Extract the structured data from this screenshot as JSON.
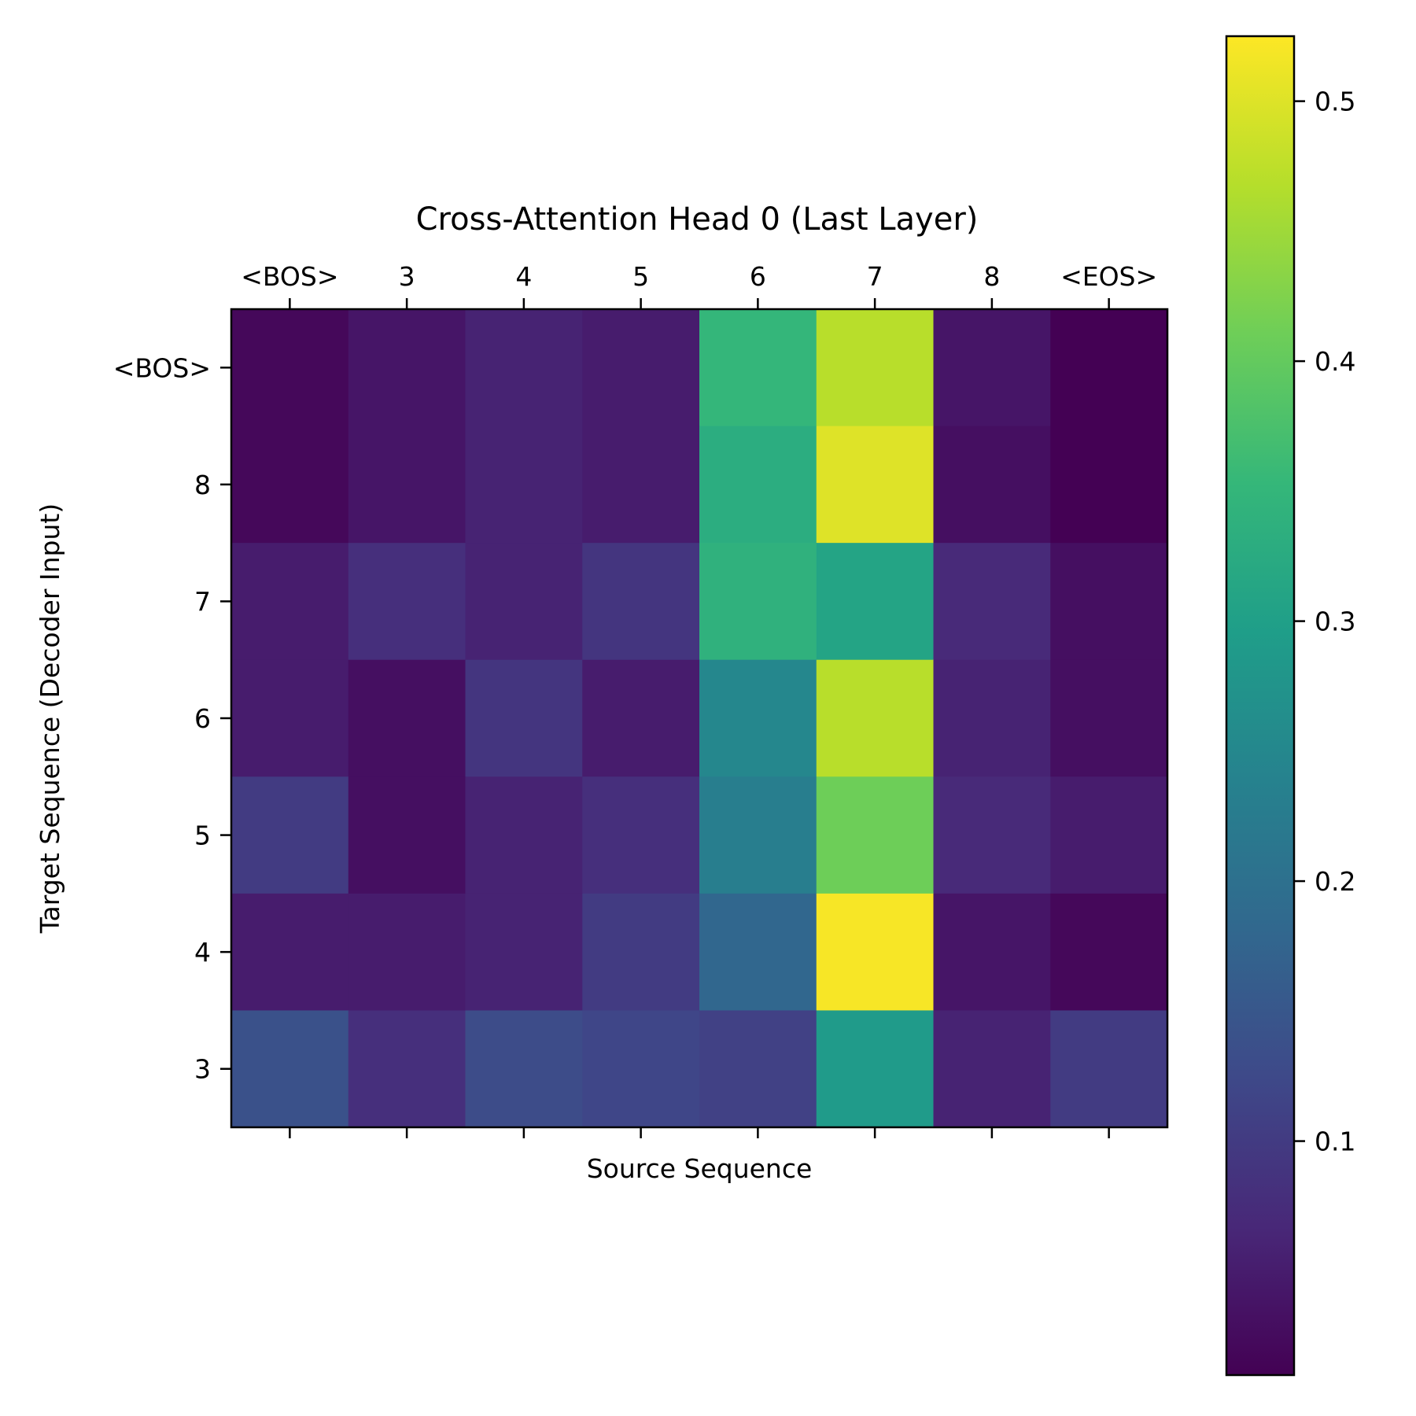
{
  "chart_data": {
    "type": "heatmap",
    "title": "Cross-Attention Head 0 (Last Layer)",
    "xlabel": "Source Sequence",
    "ylabel": "Target Sequence (Decoder Input)",
    "x_categories": [
      "<BOS>",
      "3",
      "4",
      "5",
      "6",
      "7",
      "8",
      "<EOS>"
    ],
    "y_categories": [
      "<BOS>",
      "8",
      "7",
      "6",
      "5",
      "4",
      "3"
    ],
    "values": [
      [
        0.02,
        0.04,
        0.06,
        0.05,
        0.35,
        0.47,
        0.04,
        0.01
      ],
      [
        0.02,
        0.04,
        0.06,
        0.05,
        0.33,
        0.5,
        0.03,
        0.01
      ],
      [
        0.05,
        0.08,
        0.06,
        0.09,
        0.34,
        0.31,
        0.07,
        0.03
      ],
      [
        0.05,
        0.03,
        0.09,
        0.05,
        0.25,
        0.47,
        0.06,
        0.03
      ],
      [
        0.1,
        0.03,
        0.06,
        0.08,
        0.23,
        0.41,
        0.07,
        0.05
      ],
      [
        0.05,
        0.05,
        0.06,
        0.1,
        0.18,
        0.52,
        0.04,
        0.02
      ],
      [
        0.14,
        0.08,
        0.13,
        0.12,
        0.11,
        0.29,
        0.06,
        0.1
      ]
    ],
    "colormap": "viridis",
    "colorbar": {
      "range": [
        0.01,
        0.525
      ],
      "ticks": [
        0.1,
        0.2,
        0.3,
        0.4,
        0.5
      ],
      "tick_labels": [
        "0.1",
        "0.2",
        "0.3",
        "0.4",
        "0.5"
      ]
    },
    "x_ticks_position": "top",
    "grid": false
  }
}
